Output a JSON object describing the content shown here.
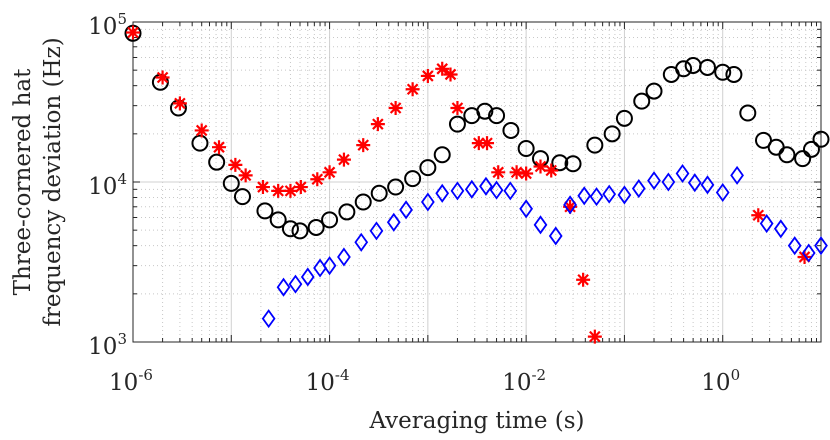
{
  "chart_data": {
    "type": "scatter",
    "xlabel": "Averaging time (s)",
    "ylabel_line1": "Three-cornered hat",
    "ylabel_line2": "frequency deviation (Hz)",
    "xscale": "log",
    "yscale": "log",
    "xlim": [
      1e-06,
      10
    ],
    "ylim": [
      1000,
      100000
    ],
    "x_ticks": [
      {
        "value": 1e-06,
        "base": "10",
        "exp": "-6"
      },
      {
        "value": 0.0001,
        "base": "10",
        "exp": "-4"
      },
      {
        "value": 0.01,
        "base": "10",
        "exp": "-2"
      },
      {
        "value": 1,
        "base": "10",
        "exp": "0"
      }
    ],
    "y_ticks": [
      {
        "value": 1000,
        "base": "10",
        "exp": "3"
      },
      {
        "value": 10000,
        "base": "10",
        "exp": "4"
      },
      {
        "value": 100000,
        "base": "10",
        "exp": "5"
      }
    ],
    "grid": true,
    "series": [
      {
        "name": "circles",
        "marker": "circle",
        "color": "#000000",
        "points": [
          [
            1e-06,
            85000
          ],
          [
            1.9e-06,
            42000
          ],
          [
            2.9e-06,
            29000
          ],
          [
            4.8e-06,
            17500
          ],
          [
            7.1e-06,
            13300
          ],
          [
            1e-05,
            9800
          ],
          [
            1.3e-05,
            8100
          ],
          [
            2.2e-05,
            6600
          ],
          [
            3e-05,
            5800
          ],
          [
            4e-05,
            5100
          ],
          [
            5e-05,
            4950
          ],
          [
            7.3e-05,
            5200
          ],
          [
            0.0001,
            5800
          ],
          [
            0.00015,
            6500
          ],
          [
            0.00022,
            7500
          ],
          [
            0.00032,
            8500
          ],
          [
            0.00047,
            9300
          ],
          [
            0.0007,
            10500
          ],
          [
            0.001,
            12300
          ],
          [
            0.0014,
            14800
          ],
          [
            0.002,
            23000
          ],
          [
            0.0028,
            26000
          ],
          [
            0.0038,
            27700
          ],
          [
            0.005,
            26000
          ],
          [
            0.007,
            21000
          ],
          [
            0.01,
            16200
          ],
          [
            0.014,
            14000
          ],
          [
            0.022,
            13200
          ],
          [
            0.03,
            13000
          ],
          [
            0.05,
            17000
          ],
          [
            0.075,
            20000
          ],
          [
            0.1,
            25000
          ],
          [
            0.15,
            32000
          ],
          [
            0.2,
            37000
          ],
          [
            0.3,
            47000
          ],
          [
            0.4,
            51000
          ],
          [
            0.5,
            53500
          ],
          [
            0.7,
            52000
          ],
          [
            1.0,
            48500
          ],
          [
            1.3,
            47000
          ],
          [
            1.8,
            27000
          ],
          [
            2.6,
            18200
          ],
          [
            3.5,
            16500
          ],
          [
            4.5,
            14800
          ],
          [
            6.5,
            14000
          ],
          [
            8.0,
            16000
          ],
          [
            10.0,
            18500
          ]
        ]
      },
      {
        "name": "asterisks",
        "marker": "asterisk",
        "color": "#ff0000",
        "points": [
          [
            1e-06,
            86000
          ],
          [
            2e-06,
            45000
          ],
          [
            3e-06,
            31000
          ],
          [
            5e-06,
            21000
          ],
          [
            7.5e-06,
            16500
          ],
          [
            1.1e-05,
            12800
          ],
          [
            1.4e-05,
            11000
          ],
          [
            2.1e-05,
            9300
          ],
          [
            3e-05,
            8800
          ],
          [
            4e-05,
            8800
          ],
          [
            5.1e-05,
            9300
          ],
          [
            7.5e-05,
            10400
          ],
          [
            0.0001,
            11500
          ],
          [
            0.00014,
            13800
          ],
          [
            0.00022,
            17000
          ],
          [
            0.00031,
            23000
          ],
          [
            0.00047,
            29000
          ],
          [
            0.0007,
            38000
          ],
          [
            0.001,
            46000
          ],
          [
            0.0014,
            51000
          ],
          [
            0.0017,
            47000
          ],
          [
            0.002,
            29000
          ],
          [
            0.0033,
            17500
          ],
          [
            0.004,
            17500
          ],
          [
            0.0052,
            11500
          ],
          [
            0.008,
            11500
          ],
          [
            0.01,
            11300
          ],
          [
            0.014,
            12500
          ],
          [
            0.018,
            11800
          ],
          [
            0.028,
            7000
          ],
          [
            0.038,
            2450
          ],
          [
            0.05,
            1080
          ],
          [
            2.3,
            6200
          ],
          [
            6.8,
            3400
          ]
        ]
      },
      {
        "name": "diamonds",
        "marker": "diamond",
        "color": "#0000ff",
        "points": [
          [
            2.4e-05,
            1400
          ],
          [
            3.4e-05,
            2200
          ],
          [
            4.5e-05,
            2300
          ],
          [
            6e-05,
            2550
          ],
          [
            8e-05,
            2900
          ],
          [
            0.0001,
            3000
          ],
          [
            0.00014,
            3400
          ],
          [
            0.00021,
            4200
          ],
          [
            0.0003,
            4950
          ],
          [
            0.00045,
            5600
          ],
          [
            0.0006,
            6700
          ],
          [
            0.001,
            7500
          ],
          [
            0.0014,
            8500
          ],
          [
            0.002,
            8800
          ],
          [
            0.0028,
            9000
          ],
          [
            0.0039,
            9400
          ],
          [
            0.005,
            8900
          ],
          [
            0.0069,
            8800
          ],
          [
            0.01,
            6800
          ],
          [
            0.014,
            5400
          ],
          [
            0.02,
            4600
          ],
          [
            0.028,
            7200
          ],
          [
            0.039,
            8200
          ],
          [
            0.052,
            8100
          ],
          [
            0.07,
            8400
          ],
          [
            0.1,
            8300
          ],
          [
            0.14,
            9100
          ],
          [
            0.2,
            10200
          ],
          [
            0.28,
            10000
          ],
          [
            0.39,
            11300
          ],
          [
            0.52,
            9900
          ],
          [
            0.7,
            9600
          ],
          [
            1.0,
            8600
          ],
          [
            1.4,
            11000
          ],
          [
            2.8,
            5500
          ],
          [
            3.9,
            5100
          ],
          [
            5.4,
            4000
          ],
          [
            7.5,
            3600
          ],
          [
            10.0,
            4000
          ]
        ]
      }
    ]
  }
}
